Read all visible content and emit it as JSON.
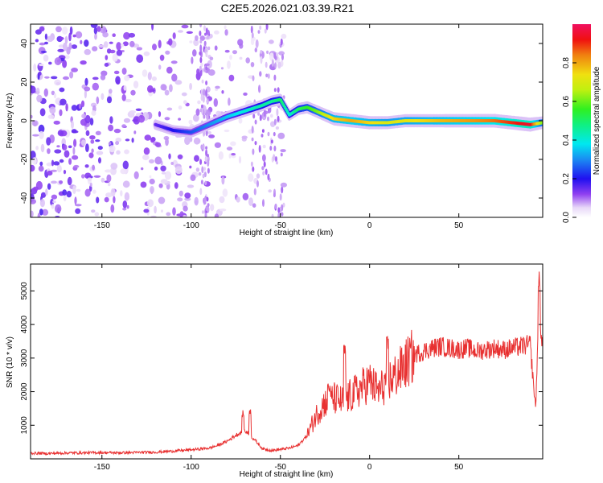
{
  "title": "C2E5.2026.021.03.39.R21",
  "colors": {
    "snr_line": "#e83030",
    "colormap": [
      "#ffffff",
      "#e8d8f8",
      "#b070f0",
      "#7a1ee6",
      "#3a0fe8",
      "#1a3cf2",
      "#00b8f0",
      "#10e8a0",
      "#30f040",
      "#a0f010",
      "#f0e010",
      "#f08010",
      "#f02010",
      "#f01060"
    ]
  },
  "chart_data": [
    {
      "type": "heatmap",
      "title": "",
      "xlabel": "Height of straight line (km)",
      "ylabel": "Frequency (Hz)",
      "xlim": [
        -190,
        97
      ],
      "ylim": [
        -50,
        50
      ],
      "xticks": [
        -150,
        -100,
        -50,
        0,
        50
      ],
      "yticks": [
        -40,
        -20,
        0,
        20,
        40
      ],
      "xtick_labels": [
        "-150",
        "-100",
        "-50",
        "0",
        "50"
      ],
      "ytick_labels": [
        "-40",
        "-20",
        "0",
        "20",
        "40"
      ],
      "colorbar": {
        "label": "Normalized spectral amplitude",
        "range": [
          0,
          1
        ],
        "ticks": [
          0.0,
          0.2,
          0.4,
          0.6,
          0.8
        ],
        "tick_labels": [
          "0.0",
          "0.2",
          "0.4",
          "0.6",
          "0.8"
        ]
      },
      "ridge": {
        "height_km": [
          -120,
          -110,
          -100,
          -90,
          -80,
          -70,
          -60,
          -55,
          -50,
          -45,
          -40,
          -35,
          -30,
          -20,
          -10,
          0,
          10,
          20,
          30,
          40,
          50,
          60,
          70,
          80,
          90,
          97
        ],
        "frequency_hz": [
          -2,
          -5,
          -6,
          -2,
          2,
          5,
          8,
          10,
          11,
          3,
          6,
          7,
          5,
          1,
          0,
          -1,
          -1,
          0,
          0,
          0,
          0,
          0,
          0,
          -1,
          -2,
          -1
        ],
        "amplitude": [
          0.15,
          0.2,
          0.25,
          0.3,
          0.35,
          0.4,
          0.45,
          0.45,
          0.5,
          0.4,
          0.5,
          0.55,
          0.6,
          0.75,
          0.8,
          0.75,
          0.7,
          0.72,
          0.75,
          0.78,
          0.8,
          0.82,
          0.85,
          0.9,
          0.95,
          0.6
        ]
      },
      "noise_region_km": [
        -190,
        -48
      ]
    },
    {
      "type": "line",
      "title": "",
      "xlabel": "Height of straight line (km)",
      "ylabel": "SNR (10 * v/v)",
      "xlim": [
        -190,
        97
      ],
      "ylim": [
        0,
        5800
      ],
      "xticks": [
        -150,
        -100,
        -50,
        0,
        50
      ],
      "yticks": [
        1000,
        2000,
        3000,
        4000,
        5000
      ],
      "xtick_labels": [
        "-150",
        "-100",
        "-50",
        "0",
        "50"
      ],
      "ytick_labels": [
        "1000",
        "2000",
        "3000",
        "4000",
        "5000"
      ],
      "series": [
        {
          "name": "SNR",
          "x": [
            -190,
            -180,
            -170,
            -160,
            -150,
            -140,
            -130,
            -120,
            -110,
            -100,
            -90,
            -85,
            -80,
            -75,
            -70,
            -65,
            -60,
            -55,
            -50,
            -45,
            -40,
            -35,
            -30,
            -25,
            -20,
            -15,
            -10,
            -5,
            0,
            5,
            10,
            15,
            20,
            25,
            30,
            35,
            40,
            45,
            50,
            55,
            60,
            65,
            70,
            75,
            80,
            85,
            90,
            93,
            95,
            97
          ],
          "y": [
            170,
            160,
            175,
            180,
            185,
            180,
            190,
            200,
            230,
            270,
            320,
            400,
            520,
            700,
            850,
            600,
            300,
            250,
            280,
            320,
            400,
            700,
            1300,
            1700,
            1800,
            1700,
            1900,
            2100,
            2300,
            2000,
            2300,
            2500,
            2800,
            3100,
            3200,
            3300,
            3350,
            3300,
            3250,
            3300,
            3200,
            3250,
            3300,
            3250,
            3300,
            3350,
            3400,
            1500,
            4500,
            3300
          ],
          "peaks_x": [
            -71,
            -67,
            -23,
            -14,
            10,
            95
          ],
          "peaks_y": [
            1450,
            1500,
            2300,
            3450,
            3650,
            5600
          ]
        }
      ]
    }
  ]
}
